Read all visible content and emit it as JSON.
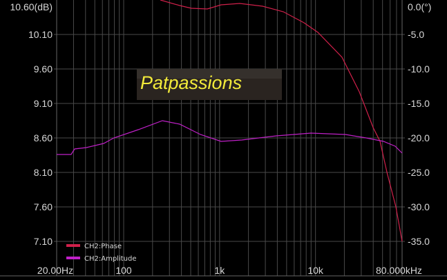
{
  "chart_data": {
    "type": "line",
    "x_scale": "log",
    "xlim": [
      20,
      80000
    ],
    "grid": true,
    "legend_placement": "bottom-left",
    "x_tick_labels": [
      {
        "value": 20,
        "label": "20.00Hz"
      },
      {
        "value": 100,
        "label": "100"
      },
      {
        "value": 1000,
        "label": "1k"
      },
      {
        "value": 10000,
        "label": "10k"
      },
      {
        "value": 80000,
        "label": "80.000kHz"
      }
    ],
    "y_left": {
      "ylim": [
        6.6,
        10.6
      ],
      "tick_labels": [
        {
          "value": 10.6,
          "label": "10.60(dB)"
        },
        {
          "value": 10.1,
          "label": "10.10"
        },
        {
          "value": 9.6,
          "label": "9.60"
        },
        {
          "value": 9.1,
          "label": "9.10"
        },
        {
          "value": 8.6,
          "label": "8.60"
        },
        {
          "value": 8.1,
          "label": "8.10"
        },
        {
          "value": 7.6,
          "label": "7.60"
        },
        {
          "value": 7.1,
          "label": "7.10"
        }
      ]
    },
    "y_right": {
      "ylim": [
        -40,
        0
      ],
      "tick_labels": [
        {
          "value": 0,
          "label": "0.0(°)"
        },
        {
          "value": -5,
          "label": "-5.0"
        },
        {
          "value": -10,
          "label": "-10.0"
        },
        {
          "value": -15,
          "label": "-15.0"
        },
        {
          "value": -20,
          "label": "-20.0"
        },
        {
          "value": -25,
          "label": "-25.0"
        },
        {
          "value": -30,
          "label": "-30.0"
        },
        {
          "value": -35,
          "label": "-35.0"
        }
      ]
    },
    "series": [
      {
        "name": "CH2:Phase",
        "axis": "right",
        "color": "#d0204a",
        "x": [
          241,
          383,
          508,
          745,
          1037,
          1621,
          2805,
          4610,
          7590,
          10600,
          18900,
          28600,
          39900,
          47100,
          55600,
          68900,
          80000
        ],
        "y": [
          0.0,
          -0.8,
          -1.2,
          -1.3,
          -0.7,
          -0.5,
          -0.9,
          -1.7,
          -3.3,
          -4.7,
          -8.3,
          -13.3,
          -18.5,
          -20.5,
          -25.0,
          -30.0,
          -35.0
        ]
      },
      {
        "name": "CH2:Amplitude",
        "axis": "left",
        "color": "#c020c8",
        "x": [
          20,
          28.3,
          30.8,
          40.8,
          61.9,
          79,
          142,
          253,
          383,
          631,
          1037,
          1706,
          3910,
          8950,
          20500,
          33800,
          51200,
          67800,
          80000
        ],
        "y": [
          8.36,
          8.36,
          8.44,
          8.46,
          8.52,
          8.6,
          8.72,
          8.85,
          8.8,
          8.65,
          8.55,
          8.57,
          8.63,
          8.67,
          8.65,
          8.6,
          8.55,
          8.48,
          8.38
        ]
      }
    ]
  },
  "watermark": {
    "text": "Patpassions",
    "color": "#f2ea3a"
  },
  "colors": {
    "background": "#000000",
    "grid": "#4a4a4a",
    "text": "#d8d8d8"
  }
}
